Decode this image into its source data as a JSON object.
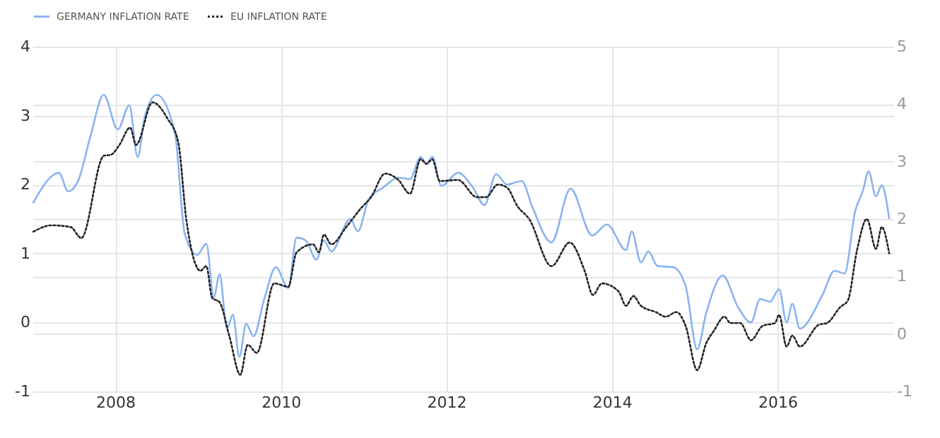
{
  "chart_data": {
    "type": "line",
    "xlim": [
      2007,
      2017.4
    ],
    "xticks": [
      2008,
      2010,
      2012,
      2014,
      2016
    ],
    "ylim": [
      -1,
      4
    ],
    "yticks": [
      -1,
      0,
      1,
      2,
      3,
      4
    ],
    "y2lim": [
      -1,
      5
    ],
    "y2ticks": [
      -1,
      0,
      1,
      2,
      3,
      4,
      5
    ],
    "grid": true,
    "legend": "top left",
    "series": [
      {
        "name": "GERMANY INFLATION RATE",
        "color": "#8ab4f0",
        "line_style": "solid",
        "axis": "y",
        "x": [
          2007.01,
          2007.32,
          2007.43,
          2007.55,
          2007.7,
          2007.86,
          2008.03,
          2008.17,
          2008.27,
          2008.36,
          2008.5,
          2008.72,
          2008.84,
          2008.99,
          2009.1,
          2009.19,
          2009.26,
          2009.35,
          2009.42,
          2009.5,
          2009.58,
          2009.67,
          2009.8,
          2009.94,
          2010.09,
          2010.19,
          2010.3,
          2010.43,
          2010.52,
          2010.61,
          2010.84,
          2010.93,
          2011.06,
          2011.24,
          2011.42,
          2011.56,
          2011.69,
          2011.76,
          2011.83,
          2011.94,
          2012.14,
          2012.32,
          2012.46,
          2012.6,
          2012.73,
          2012.91,
          2013.04,
          2013.27,
          2013.5,
          2013.76,
          2013.94,
          2014.17,
          2014.24,
          2014.35,
          2014.44,
          2014.55,
          2014.74,
          2014.89,
          2015.03,
          2015.14,
          2015.34,
          2015.52,
          2015.68,
          2015.79,
          2015.91,
          2016.02,
          2016.11,
          2016.18,
          2016.27,
          2016.54,
          2016.69,
          2016.81,
          2016.94,
          2017.03,
          2017.1,
          2017.19,
          2017.26,
          2017.35
        ],
        "values": [
          1.74,
          2.17,
          1.9,
          2.05,
          2.7,
          3.3,
          2.8,
          3.15,
          2.4,
          3.0,
          3.3,
          2.75,
          1.28,
          0.98,
          1.14,
          0.37,
          0.7,
          -0.09,
          0.11,
          -0.5,
          -0.02,
          -0.2,
          0.34,
          0.8,
          0.5,
          1.23,
          1.19,
          0.91,
          1.19,
          1.03,
          1.5,
          1.32,
          1.78,
          1.96,
          2.1,
          2.08,
          2.4,
          2.3,
          2.4,
          1.98,
          2.17,
          1.96,
          1.7,
          2.15,
          2.0,
          2.05,
          1.67,
          1.16,
          1.94,
          1.26,
          1.42,
          1.05,
          1.32,
          0.87,
          1.03,
          0.82,
          0.8,
          0.53,
          -0.39,
          0.14,
          0.68,
          0.23,
          0.0,
          0.34,
          0.3,
          0.48,
          0.0,
          0.27,
          -0.09,
          0.39,
          0.75,
          0.71,
          1.62,
          1.9,
          2.19,
          1.83,
          1.99,
          1.51
        ]
      },
      {
        "name": "EU INFLATION RATE",
        "color": "#222222",
        "line_style": "dotted",
        "axis": "y2",
        "x": [
          2007.01,
          2007.23,
          2007.46,
          2007.59,
          2007.86,
          2007.95,
          2008.05,
          2008.18,
          2008.25,
          2008.45,
          2008.63,
          2008.76,
          2008.86,
          2009.03,
          2009.1,
          2009.17,
          2009.26,
          2009.38,
          2009.51,
          2009.6,
          2009.71,
          2009.92,
          2010.09,
          2010.19,
          2010.39,
          2010.46,
          2010.52,
          2010.61,
          2010.79,
          2010.97,
          2011.09,
          2011.26,
          2011.42,
          2011.56,
          2011.69,
          2011.76,
          2011.83,
          2011.92,
          2012.14,
          2012.37,
          2012.48,
          2012.62,
          2012.73,
          2012.86,
          2013.0,
          2013.27,
          2013.49,
          2013.67,
          2013.77,
          2013.88,
          2014.08,
          2014.17,
          2014.26,
          2014.35,
          2014.53,
          2014.65,
          2014.78,
          2014.89,
          2015.03,
          2015.14,
          2015.23,
          2015.36,
          2015.43,
          2015.55,
          2015.68,
          2015.82,
          2015.97,
          2016.02,
          2016.11,
          2016.18,
          2016.27,
          2016.5,
          2016.6,
          2016.76,
          2016.85,
          2016.96,
          2017.08,
          2017.19,
          2017.26,
          2017.35
        ],
        "values": [
          1.78,
          1.89,
          1.86,
          1.67,
          3.1,
          3.12,
          3.29,
          3.59,
          3.29,
          4.03,
          3.75,
          3.34,
          1.97,
          1.1,
          1.18,
          0.63,
          0.55,
          -0.05,
          -0.71,
          -0.19,
          -0.33,
          0.88,
          0.82,
          1.42,
          1.56,
          1.42,
          1.73,
          1.56,
          1.86,
          2.19,
          2.38,
          2.79,
          2.68,
          2.44,
          3.04,
          2.96,
          3.04,
          2.66,
          2.68,
          2.38,
          2.38,
          2.6,
          2.55,
          2.22,
          2.0,
          1.18,
          1.59,
          1.1,
          0.68,
          0.88,
          0.74,
          0.49,
          0.66,
          0.49,
          0.38,
          0.3,
          0.38,
          0.14,
          -0.63,
          -0.16,
          0.05,
          0.3,
          0.19,
          0.19,
          -0.11,
          0.14,
          0.19,
          0.33,
          -0.22,
          -0.03,
          -0.22,
          0.16,
          0.19,
          0.47,
          0.58,
          1.45,
          2.0,
          1.48,
          1.86,
          1.4
        ]
      }
    ]
  }
}
